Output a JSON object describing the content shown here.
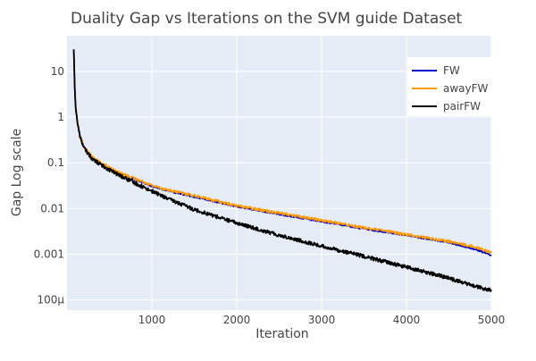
{
  "chart_data": {
    "type": "line",
    "title": "Duality Gap vs Iterations on the SVM guide Dataset",
    "xlabel": "Iteration",
    "ylabel": "Gap Log scale",
    "y_scale": "log",
    "xlim": [
      0,
      5000
    ],
    "ylim": [
      6e-05,
      60
    ],
    "x_ticks": [
      1000,
      2000,
      3000,
      4000,
      5000
    ],
    "x_tick_labels": [
      "1000",
      "2000",
      "3000",
      "4000",
      "5000"
    ],
    "y_ticks": [
      0.0001,
      0.001,
      0.01,
      0.1,
      1,
      10
    ],
    "y_tick_labels": [
      "100µ",
      "0.001",
      "0.01",
      "0.1",
      "1",
      "10"
    ],
    "grid": true,
    "legend_position": "top-right",
    "series": [
      {
        "name": "FW",
        "color": "#0000cc",
        "x": [
          80,
          90,
          100,
          120,
          150,
          200,
          300,
          400,
          500,
          600,
          800,
          1000,
          1200,
          1500,
          2000,
          2500,
          3000,
          3500,
          4000,
          4500,
          4800,
          5000
        ],
        "y": [
          30,
          5,
          1.9,
          0.85,
          0.42,
          0.22,
          0.13,
          0.095,
          0.075,
          0.06,
          0.043,
          0.031,
          0.024,
          0.018,
          0.011,
          0.0075,
          0.0052,
          0.0036,
          0.0026,
          0.0018,
          0.0013,
          0.00095
        ]
      },
      {
        "name": "awayFW",
        "color": "#ff9900",
        "x": [
          80,
          90,
          100,
          120,
          150,
          200,
          300,
          400,
          500,
          600,
          800,
          1000,
          1200,
          1500,
          2000,
          2500,
          3000,
          3500,
          4000,
          4500,
          4800,
          5000
        ],
        "y": [
          30,
          5,
          1.9,
          0.85,
          0.42,
          0.22,
          0.13,
          0.1,
          0.078,
          0.062,
          0.045,
          0.032,
          0.025,
          0.019,
          0.0115,
          0.008,
          0.0055,
          0.0038,
          0.0027,
          0.0019,
          0.00145,
          0.0011
        ]
      },
      {
        "name": "pairFW",
        "color": "#000000",
        "x": [
          80,
          90,
          100,
          120,
          150,
          200,
          300,
          400,
          500,
          600,
          800,
          1000,
          1200,
          1500,
          2000,
          2500,
          3000,
          3500,
          4000,
          4500,
          4800,
          5000
        ],
        "y": [
          30,
          5,
          1.8,
          0.8,
          0.4,
          0.21,
          0.12,
          0.09,
          0.07,
          0.055,
          0.036,
          0.024,
          0.016,
          0.0095,
          0.0048,
          0.0026,
          0.0015,
          0.0009,
          0.00052,
          0.0003,
          0.0002,
          0.00016
        ]
      }
    ]
  }
}
